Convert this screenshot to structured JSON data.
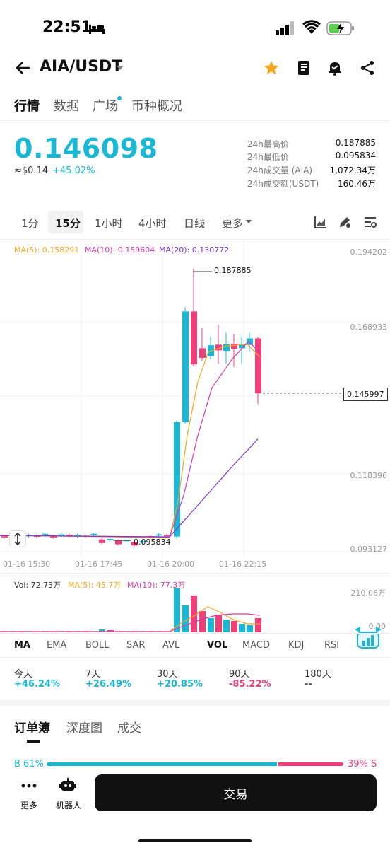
{
  "status": {
    "time": "22:51"
  },
  "header": {
    "pair": "AIA/USDT"
  },
  "tabs": [
    "行情",
    "数据",
    "广场",
    "币种概况"
  ],
  "price": {
    "last": "0.146098",
    "fiat": "≈$0.14",
    "change": "+45.02%"
  },
  "stats": [
    {
      "label": "24h最高价",
      "value": "0.187885"
    },
    {
      "label": "24h最低价",
      "value": "0.095834"
    },
    {
      "label": "24h成交量 (AIA)",
      "value": "1,072.34万"
    },
    {
      "label": "24h成交额(USDT)",
      "value": "160.46万"
    }
  ],
  "intervals": [
    "1分",
    "15分",
    "1小时",
    "4小时",
    "日线",
    "更多"
  ],
  "ma": {
    "ma5": "MA(5): 0.158291",
    "ma10": "MA(10): 0.159604",
    "ma20": "MA(20): 0.130772"
  },
  "price_axis": [
    "0.194202",
    "0.168933",
    "0.118396",
    "0.093127"
  ],
  "time_axis": [
    "01-16 15:30",
    "01-16 17:45",
    "01-16 20:00",
    "01-16 22:15"
  ],
  "high_marker": "0.187885",
  "low_marker": "0.095834",
  "current_marker": "0.145997",
  "volume": {
    "vol": "Vol: 72.73万",
    "ma5": "MA(5): 45.7万",
    "ma10": "MA(10): 77.3万",
    "top": "210.06万",
    "bottom": "0.00"
  },
  "indicators": [
    "MA",
    "EMA",
    "BOLL",
    "SAR",
    "AVL",
    "VOL",
    "MACD",
    "KDJ",
    "RSI"
  ],
  "performance": [
    {
      "label": "今天",
      "value": "+46.24%"
    },
    {
      "label": "7天",
      "value": "+26.49%"
    },
    {
      "label": "30天",
      "value": "+20.85%"
    },
    {
      "label": "90天",
      "value": "-85.22%"
    },
    {
      "label": "180天",
      "value": "--"
    }
  ],
  "orderbook_tabs": [
    "订单簿",
    "深度图",
    "成交"
  ],
  "orderbook": {
    "bid": "B 61%",
    "ask": "39% S",
    "bid_fraction": 0.61
  },
  "bottom": {
    "more": "更多",
    "robot": "机器人",
    "trade": "交易"
  },
  "colors": {
    "up": "#1bb8d6",
    "down": "#f0407a",
    "ma5": "#f5a623",
    "ma10": "#d63aa6",
    "ma20": "#7a3ad6"
  }
}
